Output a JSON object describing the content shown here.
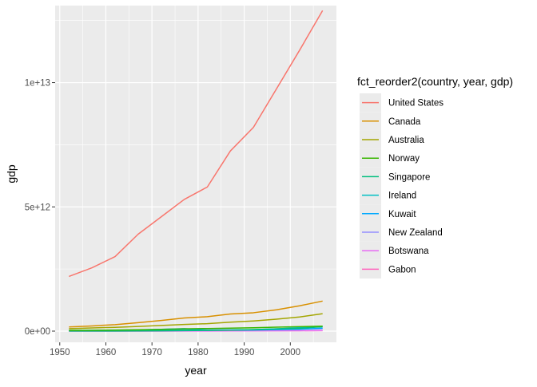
{
  "chart_data": {
    "type": "line",
    "title": "",
    "xlabel": "year",
    "ylabel": "gdp",
    "xlim": [
      1949,
      2010
    ],
    "ylim": [
      -450000000000.0,
      13100000000000.0
    ],
    "x_ticks": [
      1950,
      1960,
      1970,
      1980,
      1990,
      2000
    ],
    "x_tick_labels": [
      "1950",
      "1960",
      "1970",
      "1980",
      "1990",
      "2000"
    ],
    "y_ticks": [
      0,
      5000000000000.0,
      10000000000000.0
    ],
    "y_tick_labels": [
      "0e+00",
      "5e+12",
      "1e+13"
    ],
    "grid": true,
    "legend": {
      "title": "fct_reorder2(country, year, gdp)",
      "position": "right"
    },
    "x": [
      1952,
      1957,
      1962,
      1967,
      1972,
      1977,
      1982,
      1987,
      1992,
      1997,
      2002,
      2007
    ],
    "series": [
      {
        "name": "United States",
        "color": "#F8766D",
        "values": [
          2200000000000.0,
          2550000000000.0,
          3000000000000.0,
          3900000000000.0,
          4600000000000.0,
          5300000000000.0,
          5800000000000.0,
          7250000000000.0,
          8200000000000.0,
          9750000000000.0,
          11300000000000.0,
          12900000000000.0
        ]
      },
      {
        "name": "Canada",
        "color": "#D89000",
        "values": [
          170000000000.0,
          210000000000.0,
          260000000000.0,
          340000000000.0,
          430000000000.0,
          530000000000.0,
          580000000000.0,
          690000000000.0,
          740000000000.0,
          860000000000.0,
          1020000000000.0,
          1210000000000.0
        ]
      },
      {
        "name": "Australia",
        "color": "#A3A500",
        "values": [
          100000000000.0,
          130000000000.0,
          150000000000.0,
          190000000000.0,
          230000000000.0,
          270000000000.0,
          300000000000.0,
          360000000000.0,
          410000000000.0,
          480000000000.0,
          570000000000.0,
          700000000000.0
        ]
      },
      {
        "name": "Norway",
        "color": "#39B600",
        "values": [
          30000000000.0,
          35000000000.0,
          43000000000.0,
          55000000000.0,
          70000000000.0,
          90000000000.0,
          105000000000.0,
          120000000000.0,
          135000000000.0,
          160000000000.0,
          180000000000.0,
          200000000000.0
        ]
      },
      {
        "name": "Singapore",
        "color": "#00BF7D",
        "values": [
          2000000000.0,
          3000000000.0,
          4000000000.0,
          7000000000.0,
          12000000000.0,
          18000000000.0,
          28000000000.0,
          40000000000.0,
          60000000000.0,
          90000000000.0,
          110000000000.0,
          180000000000.0
        ]
      },
      {
        "name": "Ireland",
        "color": "#00BFC4",
        "values": [
          18000000000.0,
          18000000000.0,
          20000000000.0,
          24000000000.0,
          30000000000.0,
          35000000000.0,
          40000000000.0,
          45000000000.0,
          60000000000.0,
          90000000000.0,
          140000000000.0,
          180000000000.0
        ]
      },
      {
        "name": "Kuwait",
        "color": "#00A9FF",
        "values": [
          17000000000.0,
          26000000000.0,
          36000000000.0,
          46000000000.0,
          70000000000.0,
          100000000000.0,
          40000000000.0,
          40000000000.0,
          45000000000.0,
          60000000000.0,
          75000000000.0,
          120000000000.0
        ]
      },
      {
        "name": "New Zealand",
        "color": "#9590FF",
        "values": [
          21000000000.0,
          24000000000.0,
          28000000000.0,
          35000000000.0,
          40000000000.0,
          43000000000.0,
          48000000000.0,
          55000000000.0,
          55000000000.0,
          65000000000.0,
          80000000000.0,
          95000000000.0
        ]
      },
      {
        "name": "Botswana",
        "color": "#E76BF3",
        "values": [
          300000000.0,
          400000000.0,
          500000000.0,
          800000000.0,
          1500000000.0,
          2500000000.0,
          4500000000.0,
          7000000000.0,
          12000000000.0,
          15000000000.0,
          20000000000.0,
          22000000000.0
        ]
      },
      {
        "name": "Gabon",
        "color": "#FF62BC",
        "values": [
          2000000000.0,
          2500000000.0,
          3000000000.0,
          5000000000.0,
          8000000000.0,
          15000000000.0,
          14000000000.0,
          14000000000.0,
          15000000000.0,
          17000000000.0,
          17000000000.0,
          20000000000.0
        ]
      }
    ]
  }
}
